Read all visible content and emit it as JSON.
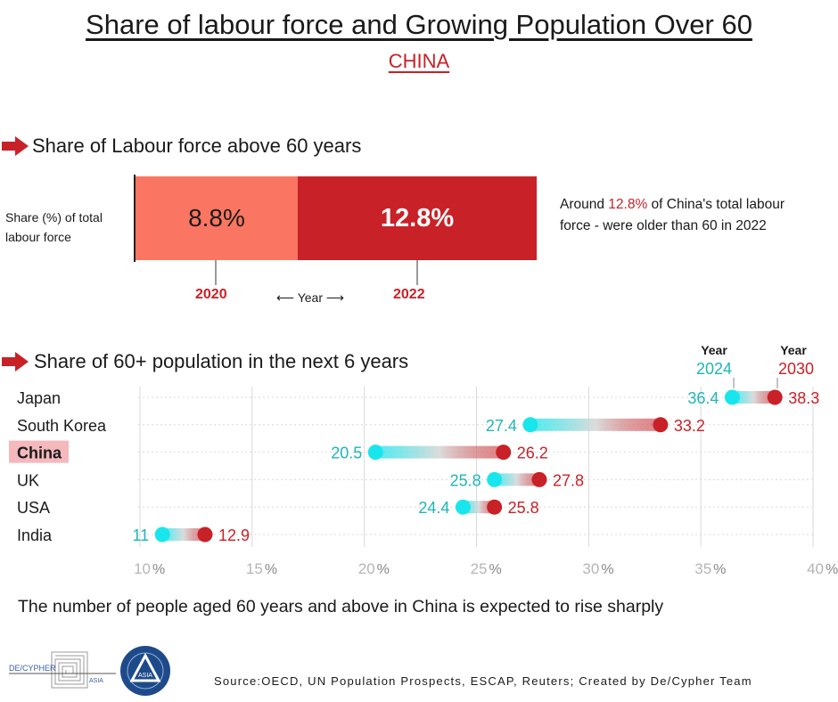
{
  "title": "Share of labour force and Growing Population Over 60",
  "subtitle": "CHINA",
  "colors": {
    "dark_red": "#c82127",
    "salmon": "#fb7662",
    "cyan": "#19e6ec",
    "teal_text": "#1fb5b8",
    "grid": "#d9d9d9",
    "highlight_bg": "#f4b8bd"
  },
  "section1": {
    "icon": "arrow-right-icon",
    "title": "Share of Labour force above 60 years",
    "ylabel": "Share (%) of total labour force",
    "axis_label": "Year",
    "note_prefix": "Around ",
    "note_highlight": "12.8%",
    "note_suffix": " of China's total labour force - were older than 60 in 2022"
  },
  "section2": {
    "icon": "arrow-right-icon",
    "title": "Share of 60+ population in the next 6 years",
    "year_word": "Year",
    "start_year": "2024",
    "end_year": "2030"
  },
  "chart_data": [
    {
      "type": "bar",
      "title": "Share of Labour force above 60 years",
      "ylabel": "Share (%) of total labour force",
      "xlabel": "Year",
      "categories": [
        "2020",
        "2022"
      ],
      "values": [
        8.8,
        12.8
      ],
      "labels": [
        "8.8%",
        "12.8%"
      ]
    },
    {
      "type": "scatter",
      "subtype": "dumbbell",
      "title": "Share of 60+ population in the next 6 years",
      "categories": [
        "Japan",
        "South Korea",
        "China",
        "UK",
        "USA",
        "India"
      ],
      "highlight": "China",
      "series": [
        {
          "name": "2024",
          "values": [
            36.4,
            27.4,
            20.5,
            25.8,
            24.4,
            11
          ]
        },
        {
          "name": "2030",
          "values": [
            38.3,
            33.2,
            26.2,
            27.8,
            25.8,
            12.9
          ]
        }
      ],
      "value_labels_2024": [
        "36.4",
        "27.4",
        "20.5",
        "25.8",
        "24.4",
        "11"
      ],
      "value_labels_2030": [
        "38.3",
        "33.2",
        "26.2",
        "27.8",
        "25.8",
        "12.9"
      ],
      "xlim": [
        10,
        40
      ],
      "xticks": [
        10,
        15,
        20,
        25,
        30,
        35,
        40
      ],
      "xtick_labels": [
        "10",
        "15",
        "20",
        "25",
        "30",
        "35",
        "40"
      ],
      "xtick_suffix": "%",
      "grid": true
    }
  ],
  "footer": {
    "statement": "The number of people aged 60 years and above in China is expected to rise sharply",
    "source": "Source:OECD, UN Population Prospects, ESCAP, Reuters; Created by De/Cypher Team"
  },
  "logos": {
    "decypher_logo": "DE/CYPHER",
    "decypher_sub": "ASIA",
    "asia_logo": "ASIA"
  }
}
